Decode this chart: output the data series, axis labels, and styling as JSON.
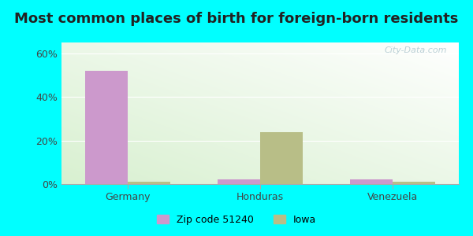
{
  "title": "Most common places of birth for foreign-born residents",
  "categories": [
    "Germany",
    "Honduras",
    "Venezuela"
  ],
  "zip_values": [
    52.0,
    2.0,
    2.0
  ],
  "iowa_values": [
    1.0,
    24.0,
    1.0
  ],
  "zip_color": "#cc99cc",
  "iowa_color": "#b8be87",
  "background_color": "#00ffff",
  "plot_bg_topleft": "#d8f0d0",
  "plot_bg_bottomright": "#f0fff8",
  "yticks": [
    0,
    20,
    40,
    60
  ],
  "ylim": [
    0,
    65
  ],
  "legend_labels": [
    "Zip code 51240",
    "Iowa"
  ],
  "watermark": "City-Data.com",
  "title_fontsize": 13,
  "tick_fontsize": 9,
  "legend_fontsize": 9,
  "bar_width": 0.32
}
